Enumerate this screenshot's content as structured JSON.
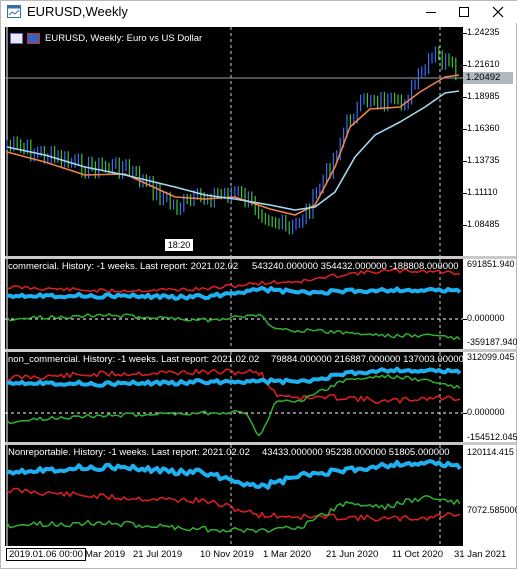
{
  "window": {
    "title": "EURUSD,Weekly",
    "controls": [
      "minimize-icon",
      "maximize-icon",
      "close-icon"
    ]
  },
  "main_chart": {
    "header": "EURUSD, Weekly:  Euro vs US Dollar",
    "current_price": "1.20492",
    "price_labels": [
      "1.24235",
      "1.21610",
      "1.18985",
      "1.16360",
      "1.13735",
      "1.11110",
      "1.08485"
    ],
    "crosshair_time": "18:20",
    "colors": {
      "candles_up": "#3c6cf0",
      "candles_down": "#3cc03c",
      "fast_ma": "#f08050",
      "slow_ma": "#a8d8f0"
    }
  },
  "indicators": [
    {
      "label": "commercial. History: -1 weeks. Last report: 2021.02.02",
      "values": "543240.000000  354432.000000  -188808.000000",
      "axis_labels": [
        "691851.940",
        "0.000000",
        "-359187.940"
      ],
      "colors": {
        "net": "#20b0f0",
        "long": "#e02020",
        "short": "#30b030"
      }
    },
    {
      "label": "non_commercial. History: -1 weeks. Last report: 2021.02.02",
      "values": "79884.000000  216887.000000  137003.000000",
      "axis_labels": [
        "312099.045",
        "0.000000",
        "-154512.045"
      ],
      "colors": {
        "net": "#20b0f0",
        "long": "#e02020",
        "short": "#30b030"
      }
    },
    {
      "label": "Nonreportable. History: -1 weeks. Last report: 2021.02.02",
      "values": "43433.000000  95238.000000  51805.000000",
      "axis_labels": [
        "120114.415",
        "7072.585000"
      ],
      "colors": {
        "net": "#20b0f0",
        "long": "#e02020",
        "short": "#30b030"
      }
    }
  ],
  "time_axis": [
    "2019.01.06 00:00",
    "Mar 2019",
    "21 Jul 2019",
    "10 Nov 2019",
    "1 Mar 2020",
    "21 Jun 2020",
    "11 Oct 2020",
    "31 Jan 2021"
  ]
}
